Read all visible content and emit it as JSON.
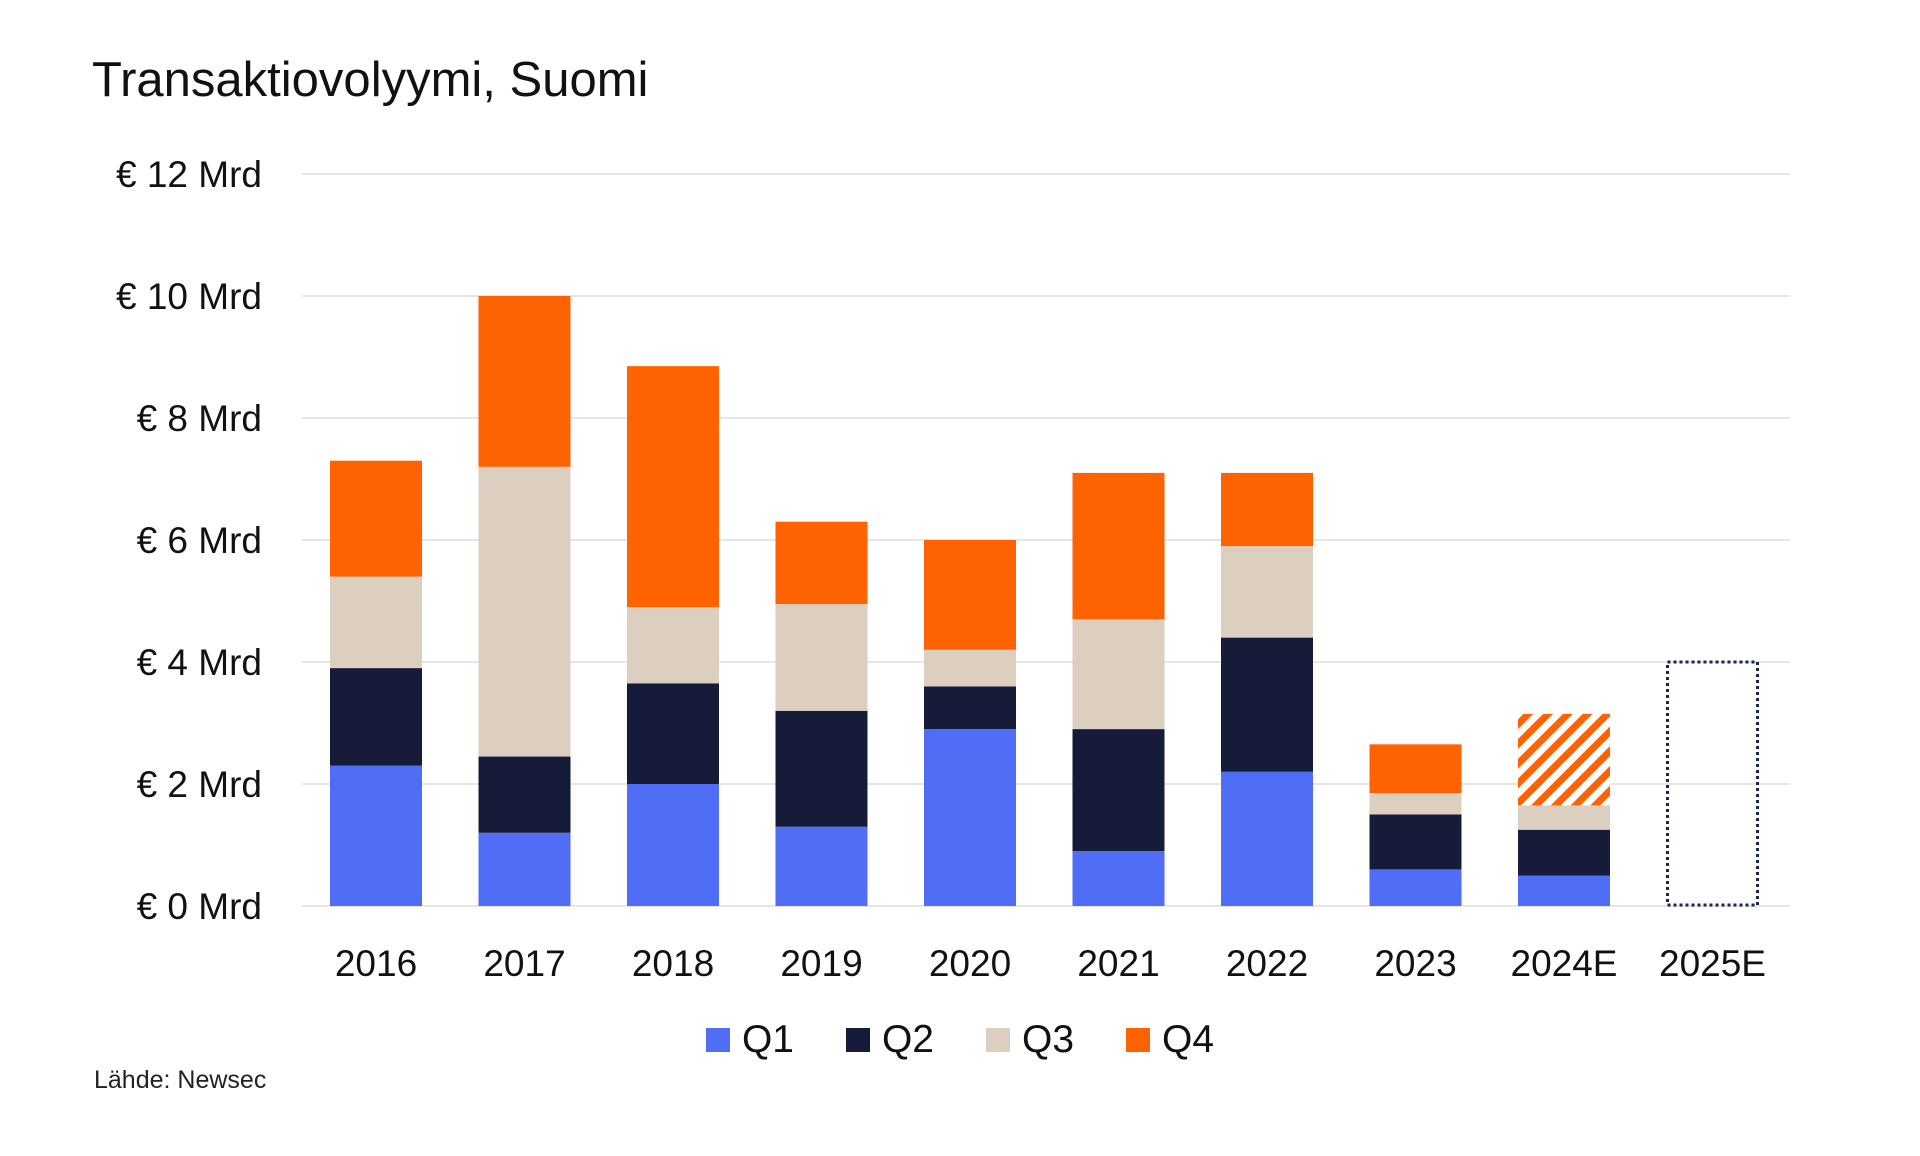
{
  "chart_data": {
    "type": "bar",
    "stacked": true,
    "title": "Transaktiovolyymi, Suomi",
    "categories": [
      "2016",
      "2017",
      "2018",
      "2019",
      "2020",
      "2021",
      "2022",
      "2023",
      "2024E",
      "2025E"
    ],
    "series": [
      {
        "name": "Q1",
        "color": "#4F6DF5",
        "values": [
          2.3,
          1.2,
          2.0,
          1.3,
          2.9,
          0.9,
          2.2,
          0.6,
          0.5,
          null
        ]
      },
      {
        "name": "Q2",
        "color": "#161B3A",
        "values": [
          1.6,
          1.25,
          1.65,
          1.9,
          0.7,
          2.0,
          2.2,
          0.9,
          0.75,
          null
        ]
      },
      {
        "name": "Q3",
        "color": "#DDCFBF",
        "values": [
          1.5,
          4.75,
          1.25,
          1.75,
          0.6,
          1.8,
          1.5,
          0.35,
          0.4,
          null
        ]
      },
      {
        "name": "Q4",
        "color": "#FF6200",
        "values": [
          1.9,
          2.8,
          3.95,
          1.35,
          1.8,
          2.4,
          1.2,
          0.8,
          1.5,
          null
        ]
      }
    ],
    "estimates": {
      "2024E": {
        "hatched_series": "Q4"
      },
      "2025E": {
        "total_outline": 4.0
      }
    },
    "yticks": [
      "€ 0 Mrd",
      "€ 2 Mrd",
      "€ 4 Mrd",
      "€ 6 Mrd",
      "€ 8 Mrd",
      "€ 10 Mrd",
      "€ 12 Mrd"
    ],
    "ytick_values": [
      0,
      2,
      4,
      6,
      8,
      10,
      12
    ],
    "ylim": [
      0,
      12
    ],
    "xlabel": "",
    "ylabel": "",
    "grid": true,
    "legend_position": "bottom-center",
    "source": "Lähde: Newsec"
  }
}
